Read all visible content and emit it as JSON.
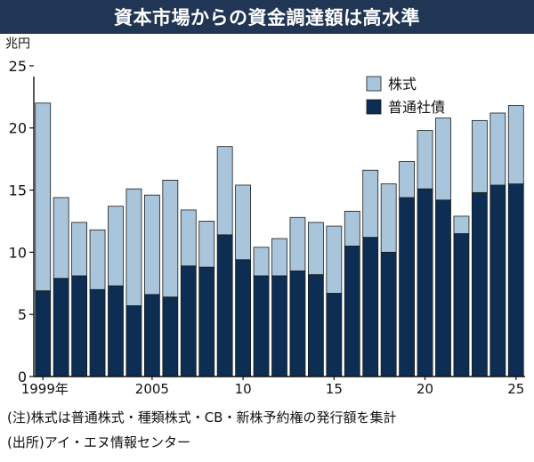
{
  "title": "資本市場からの資金調達額は高水準",
  "notes": {
    "note1": "(注)株式は普通株式・種類株式・CB・新株予約権の発行額を集計",
    "note2": "(出所)アイ・エヌ情報センター"
  },
  "colors": {
    "title_bg": "#213554",
    "stocks": "#a9c5dc",
    "bonds": "#0d2e52",
    "axis": "#111111"
  },
  "chart_data": {
    "type": "bar",
    "stacked": true,
    "ylabel": "兆円",
    "ylim": [
      0,
      27
    ],
    "yticks": [
      0,
      5,
      10,
      15,
      20,
      25
    ],
    "legend_position": "top-right",
    "categories": [
      "1999",
      "2000",
      "2001",
      "2002",
      "2003",
      "2004",
      "2005",
      "2006",
      "2007",
      "2008",
      "2009",
      "2010",
      "2011",
      "2012",
      "2013",
      "2014",
      "2015",
      "2016",
      "2017",
      "2018",
      "2019",
      "2020",
      "2021",
      "2022",
      "2023",
      "2024",
      "2025"
    ],
    "xtick_labels": [
      {
        "category": "1999",
        "label": "1999年"
      },
      {
        "category": "2005",
        "label": "2005"
      },
      {
        "category": "2010",
        "label": "10"
      },
      {
        "category": "2015",
        "label": "15"
      },
      {
        "category": "2020",
        "label": "20"
      },
      {
        "category": "2025",
        "label": "25"
      }
    ],
    "series": [
      {
        "name": "普通社債",
        "values": [
          6.9,
          7.9,
          8.1,
          7.0,
          7.3,
          5.7,
          6.6,
          6.4,
          8.9,
          8.8,
          11.4,
          9.4,
          8.1,
          8.1,
          8.5,
          8.2,
          6.7,
          10.5,
          11.2,
          10.0,
          14.4,
          15.1,
          14.2,
          11.5,
          14.8,
          15.4,
          15.5
        ]
      },
      {
        "name": "株式",
        "values": [
          15.1,
          6.5,
          4.3,
          4.8,
          6.4,
          9.4,
          8.0,
          9.4,
          4.5,
          3.7,
          7.1,
          6.0,
          2.3,
          3.0,
          4.3,
          4.2,
          5.4,
          2.8,
          5.4,
          5.5,
          2.9,
          4.7,
          6.6,
          1.4,
          5.8,
          5.8,
          6.3
        ]
      }
    ]
  }
}
